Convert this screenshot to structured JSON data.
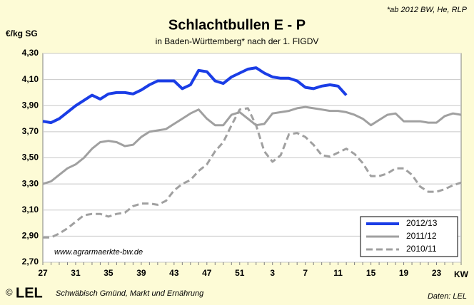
{
  "chart_data": {
    "type": "line",
    "title": "Schlachtbullen E - P",
    "subtitle": "in Baden-Württemberg* nach der 1. FIGDV",
    "footnote": "*ab 2012 BW, He, RLP",
    "y_label": "€/kg SG",
    "x_label": "KW",
    "source_url": "www.agrarmaerkte-bw.de",
    "footer_copyright": "©",
    "footer_logo": "LEL",
    "footer_org": "Schwäbisch Gmünd, Markt und Ernährung",
    "footer_source": "Daten: LEL",
    "categories": [
      27,
      null,
      null,
      null,
      31,
      null,
      null,
      null,
      35,
      null,
      null,
      null,
      39,
      null,
      null,
      null,
      43,
      null,
      null,
      null,
      47,
      null,
      null,
      null,
      51,
      null,
      null,
      null,
      3,
      null,
      null,
      null,
      7,
      null,
      null,
      null,
      11,
      null,
      null,
      null,
      15,
      null,
      null,
      null,
      19,
      null,
      null,
      null,
      23,
      null,
      null,
      null
    ],
    "ylim": [
      2.7,
      4.3
    ],
    "yticks": [
      {
        "value": 2.7,
        "label": "2,70"
      },
      {
        "value": 2.9,
        "label": "2,90"
      },
      {
        "value": 3.1,
        "label": "3,10"
      },
      {
        "value": 3.3,
        "label": "3,30"
      },
      {
        "value": 3.5,
        "label": "3,50"
      },
      {
        "value": 3.7,
        "label": "3,70"
      },
      {
        "value": 3.9,
        "label": "3,90"
      },
      {
        "value": 4.1,
        "label": "4,10"
      },
      {
        "value": 4.3,
        "label": "4,30"
      }
    ],
    "grid": true,
    "legend": "lower right",
    "series": [
      {
        "name": "2012/13",
        "color": "#1a3de6",
        "width": 4,
        "dashed": false,
        "values": [
          3.78,
          3.77,
          3.8,
          3.85,
          3.9,
          3.94,
          3.98,
          3.95,
          3.99,
          4.0,
          4.0,
          3.99,
          4.02,
          4.06,
          4.09,
          4.09,
          4.09,
          4.03,
          4.06,
          4.17,
          4.16,
          4.09,
          4.07,
          4.12,
          4.15,
          4.18,
          4.19,
          4.15,
          4.12,
          4.11,
          4.11,
          4.09,
          4.04,
          4.03,
          4.05,
          4.06,
          4.05,
          3.98,
          null,
          null,
          null,
          null,
          null,
          null,
          null,
          null,
          null,
          null,
          null,
          null,
          null,
          null
        ]
      },
      {
        "name": "2011/12",
        "color": "#a0a0a0",
        "width": 3,
        "dashed": false,
        "values": [
          3.3,
          3.32,
          3.37,
          3.42,
          3.45,
          3.5,
          3.57,
          3.62,
          3.63,
          3.62,
          3.59,
          3.6,
          3.66,
          3.7,
          3.71,
          3.72,
          3.76,
          3.8,
          3.84,
          3.87,
          3.8,
          3.75,
          3.75,
          3.83,
          3.85,
          3.8,
          3.75,
          3.76,
          3.84,
          3.85,
          3.86,
          3.88,
          3.89,
          3.88,
          3.87,
          3.86,
          3.86,
          3.85,
          3.83,
          3.8,
          3.75,
          3.79,
          3.83,
          3.84,
          3.78,
          3.78,
          3.78,
          3.77,
          3.77,
          3.82,
          3.84,
          3.83
        ]
      },
      {
        "name": "2010/11",
        "color": "#a0a0a0",
        "width": 3,
        "dashed": true,
        "values": [
          2.89,
          2.89,
          2.92,
          2.96,
          3.01,
          3.06,
          3.07,
          3.07,
          3.05,
          3.07,
          3.08,
          3.13,
          3.15,
          3.15,
          3.14,
          3.17,
          3.25,
          3.3,
          3.33,
          3.4,
          3.45,
          3.55,
          3.62,
          3.75,
          3.87,
          3.88,
          3.75,
          3.55,
          3.47,
          3.52,
          3.68,
          3.69,
          3.66,
          3.6,
          3.52,
          3.51,
          3.54,
          3.57,
          3.53,
          3.46,
          3.36,
          3.36,
          3.38,
          3.42,
          3.42,
          3.37,
          3.28,
          3.24,
          3.24,
          3.26,
          3.29,
          3.31
        ]
      }
    ]
  }
}
